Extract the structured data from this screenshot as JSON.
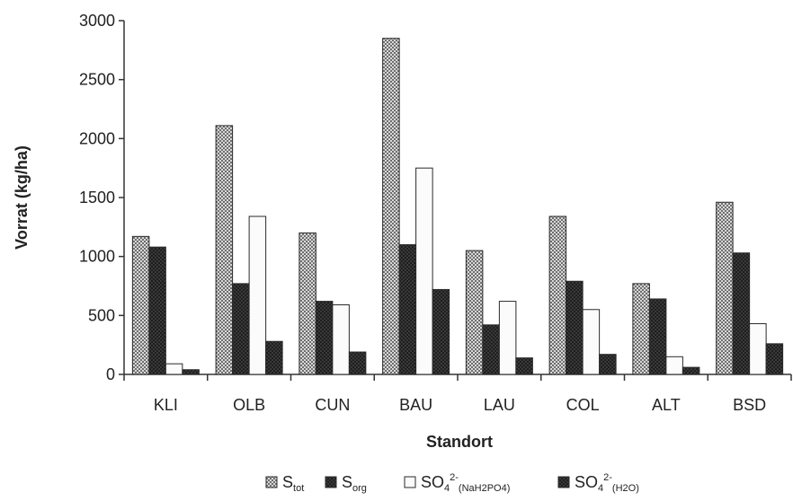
{
  "chart_data": {
    "type": "bar",
    "xlabel": "Standort",
    "ylabel": "Vorrat (kg/ha)",
    "ylim": [
      0,
      3000
    ],
    "yticks": [
      0,
      500,
      1000,
      1500,
      2000,
      2500,
      3000
    ],
    "categories": [
      "KLI",
      "OLB",
      "CUN",
      "BAU",
      "LAU",
      "COL",
      "ALT",
      "BSD"
    ],
    "grid": false,
    "legend_position": "bottom",
    "series": [
      {
        "name": "S_tot",
        "label_main": "S",
        "label_sub": "tot",
        "label_sup": "",
        "pattern": "checker",
        "values": [
          1170,
          2110,
          1200,
          2850,
          1050,
          1340,
          770,
          1460
        ]
      },
      {
        "name": "S_org",
        "label_main": "S",
        "label_sub": "org",
        "label_sup": "",
        "pattern": "dark",
        "values": [
          1080,
          770,
          620,
          1100,
          420,
          790,
          640,
          1030
        ]
      },
      {
        "name": "SO4 2- (NaH2PO4)",
        "label_main": "SO",
        "label_sub": "4",
        "label_sup": "2-",
        "label_sub2": "(NaH2PO4)",
        "pattern": "white",
        "values": [
          90,
          1340,
          590,
          1750,
          620,
          550,
          150,
          430
        ]
      },
      {
        "name": "SO4 2- (H2O)",
        "label_main": "SO",
        "label_sub": "4",
        "label_sup": "2-",
        "label_sub2": "(H2O)",
        "pattern": "dark",
        "values": [
          40,
          280,
          190,
          720,
          140,
          170,
          60,
          260
        ]
      }
    ]
  }
}
